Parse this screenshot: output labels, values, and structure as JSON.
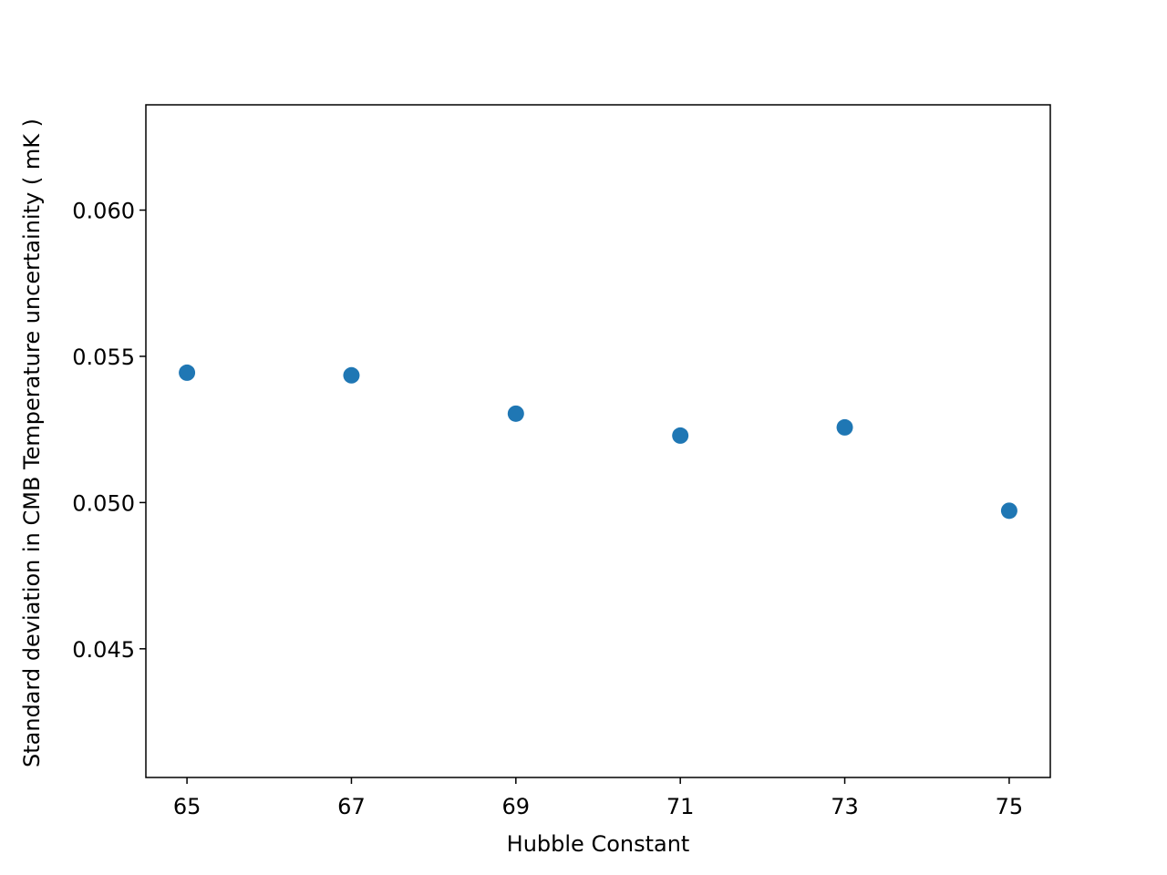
{
  "chart_data": {
    "type": "scatter",
    "x_label": "Hubble Constant",
    "y_label": "Standard deviation in CMB Temperature uncertainity ( mK )",
    "x": [
      65,
      67,
      69,
      71,
      73,
      75
    ],
    "series": [
      {
        "color": "#1f77b4",
        "values": [
          0.05444,
          0.05435,
          0.05304,
          0.05229,
          0.05257,
          0.04972
        ]
      }
    ],
    "xlim": [
      64.5,
      75.5
    ],
    "ylim": [
      0.0406,
      0.0636
    ],
    "xticks": [
      65,
      67,
      69,
      71,
      73,
      75
    ],
    "yticks": [
      {
        "value": 0.045,
        "label": "0.045"
      },
      {
        "value": 0.05,
        "label": "0.050"
      },
      {
        "value": 0.055,
        "label": "0.055"
      },
      {
        "value": 0.06,
        "label": "0.060"
      }
    ]
  }
}
